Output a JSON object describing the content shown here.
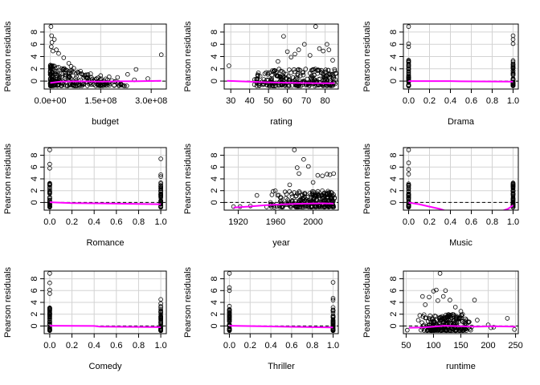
{
  "figure": {
    "ylabel": "Pearson residuals",
    "colors": {
      "points": "#000000",
      "smooth": "#ff00ff",
      "grid": "#d3d3d3",
      "reference": "#000000",
      "box": "#000000"
    }
  },
  "chart_data": [
    {
      "type": "scatter",
      "xlabel": "budget",
      "ylabel": "Pearson residuals",
      "xlim": [
        -18000000,
        345000000
      ],
      "ylim": [
        -1.3,
        9.3
      ],
      "xticks": [
        0,
        150000000,
        300000000
      ],
      "xtick_labels": [
        "0.0e+00",
        "1.5e+08",
        "3.0e+08"
      ],
      "yticks": [
        0,
        2,
        4,
        6,
        8
      ],
      "reference_line": 0,
      "grid": true,
      "points": [
        [
          2000000,
          8.9
        ],
        [
          4000000,
          7.4
        ],
        [
          5000000,
          6.3
        ],
        [
          3000000,
          5.6
        ],
        [
          12000000,
          6.8
        ],
        [
          18000000,
          5.1
        ],
        [
          25000000,
          4.5
        ],
        [
          8000000,
          4.9
        ],
        [
          40000000,
          3.8
        ],
        [
          55000000,
          2.9
        ],
        [
          62000000,
          2.4
        ],
        [
          70000000,
          2.1
        ],
        [
          90000000,
          1.6
        ],
        [
          120000000,
          1.2
        ],
        [
          150000000,
          0.9
        ],
        [
          175000000,
          0.7
        ],
        [
          200000000,
          0.6
        ],
        [
          230000000,
          1.1
        ],
        [
          250000000,
          0.2
        ],
        [
          255000000,
          1.9
        ],
        [
          290000000,
          0.4
        ],
        [
          330000000,
          4.3
        ]
      ],
      "smooth": [
        [
          0,
          -0.3
        ],
        [
          30000000,
          -0.1
        ],
        [
          80000000,
          -0.05
        ],
        [
          150000000,
          -0.1
        ],
        [
          200000000,
          -0.05
        ],
        [
          260000000,
          -0.02
        ],
        [
          330000000,
          0.05
        ]
      ]
    },
    {
      "type": "scatter",
      "xlabel": "rating",
      "ylabel": "Pearson residuals",
      "xlim": [
        26.5,
        87
      ],
      "ylim": [
        -1.3,
        9.3
      ],
      "xticks": [
        30,
        40,
        50,
        60,
        70,
        80
      ],
      "xtick_labels": [
        "30",
        "40",
        "50",
        "60",
        "70",
        "80"
      ],
      "yticks": [
        0,
        2,
        4,
        6,
        8
      ],
      "reference_line": 0,
      "grid": true,
      "points": [
        [
          29,
          2.5
        ],
        [
          44,
          0.3
        ],
        [
          48,
          1.2
        ],
        [
          52,
          1.7
        ],
        [
          55,
          3.2
        ],
        [
          58,
          7.3
        ],
        [
          60,
          4.8
        ],
        [
          62,
          3.9
        ],
        [
          64,
          4.4
        ],
        [
          66,
          5.1
        ],
        [
          69,
          6.0
        ],
        [
          72,
          4.2
        ],
        [
          75,
          8.9
        ],
        [
          77,
          5.3
        ],
        [
          79,
          4.9
        ],
        [
          81,
          6.0
        ],
        [
          82,
          5.1
        ],
        [
          84,
          3.4
        ],
        [
          85,
          1.9
        ]
      ],
      "smooth": [
        [
          28,
          0.05
        ],
        [
          35,
          -0.05
        ],
        [
          45,
          -0.15
        ],
        [
          55,
          -0.25
        ],
        [
          65,
          -0.3
        ],
        [
          75,
          -0.35
        ],
        [
          85,
          -0.35
        ]
      ]
    },
    {
      "type": "scatter",
      "xlabel": "Drama",
      "ylabel": "Pearson residuals",
      "xlim": [
        -0.05,
        1.05
      ],
      "ylim": [
        -1.3,
        9.3
      ],
      "xticks": [
        0,
        0.2,
        0.4,
        0.6,
        0.8,
        1.0
      ],
      "xtick_labels": [
        "0.0",
        "0.2",
        "0.4",
        "0.6",
        "0.8",
        "1.0"
      ],
      "yticks": [
        0,
        2,
        4,
        6,
        8
      ],
      "reference_line": 0,
      "grid": true,
      "points": [
        [
          0,
          8.9
        ],
        [
          0,
          6.1
        ],
        [
          0,
          5.6
        ],
        [
          1,
          7.4
        ],
        [
          1,
          6.8
        ],
        [
          1,
          6.1
        ]
      ],
      "smooth": [
        [
          0,
          0
        ],
        [
          0.4,
          0
        ],
        [
          0.5,
          -0.05
        ],
        [
          1,
          -0.1
        ]
      ]
    },
    {
      "type": "scatter",
      "xlabel": "Romance",
      "ylabel": "Pearson residuals",
      "xlim": [
        -0.05,
        1.05
      ],
      "ylim": [
        -1.3,
        9.3
      ],
      "xticks": [
        0,
        0.2,
        0.4,
        0.6,
        0.8,
        1.0
      ],
      "xtick_labels": [
        "0.0",
        "0.2",
        "0.4",
        "0.6",
        "0.8",
        "1.0"
      ],
      "yticks": [
        0,
        2,
        4,
        6,
        8
      ],
      "reference_line": 0,
      "grid": true,
      "points": [
        [
          0,
          8.9
        ],
        [
          0,
          6.5
        ],
        [
          0,
          5.8
        ],
        [
          1,
          7.4
        ],
        [
          1,
          4.7
        ],
        [
          1,
          4.4
        ]
      ],
      "smooth": [
        [
          0,
          0.05
        ],
        [
          0.2,
          -0.1
        ],
        [
          0.6,
          -0.2
        ],
        [
          1,
          -0.3
        ]
      ]
    },
    {
      "type": "scatter",
      "xlabel": "year",
      "ylabel": "Pearson residuals",
      "xlim": [
        1905,
        2027
      ],
      "ylim": [
        -1.3,
        9.3
      ],
      "xticks": [
        1920,
        1960,
        2000
      ],
      "xtick_labels": [
        "1920",
        "1960",
        "2000"
      ],
      "yticks": [
        0,
        2,
        4,
        6,
        8
      ],
      "reference_line": 0,
      "grid": true,
      "points": [
        [
          1915,
          -0.7
        ],
        [
          1922,
          -0.7
        ],
        [
          1933,
          -0.6
        ],
        [
          1940,
          1.2
        ],
        [
          1955,
          -0.3
        ],
        [
          1965,
          0.2
        ],
        [
          1970,
          1.8
        ],
        [
          1975,
          3.0
        ],
        [
          1980,
          8.9
        ],
        [
          1983,
          5.9
        ],
        [
          1985,
          4.9
        ],
        [
          1990,
          7.3
        ],
        [
          1995,
          6.1
        ],
        [
          2000,
          3.4
        ],
        [
          2005,
          4.6
        ],
        [
          2010,
          4.5
        ],
        [
          2015,
          4.8
        ],
        [
          2018,
          4.7
        ],
        [
          2022,
          4.9
        ]
      ],
      "smooth": [
        [
          1915,
          -0.85
        ],
        [
          1930,
          -0.7
        ],
        [
          1950,
          -0.45
        ],
        [
          1970,
          -0.3
        ],
        [
          1990,
          -0.2
        ],
        [
          2010,
          -0.15
        ],
        [
          2022,
          -0.2
        ]
      ]
    },
    {
      "type": "scatter",
      "xlabel": "Music",
      "ylabel": "Pearson residuals",
      "xlim": [
        -0.05,
        1.05
      ],
      "ylim": [
        -1.3,
        9.3
      ],
      "xticks": [
        0,
        0.2,
        0.4,
        0.6,
        0.8,
        1.0
      ],
      "xtick_labels": [
        "0.0",
        "0.2",
        "0.4",
        "0.6",
        "0.8",
        "1.0"
      ],
      "yticks": [
        0,
        2,
        4,
        6,
        8
      ],
      "reference_line": 0,
      "grid": true,
      "points": [
        [
          0,
          8.9
        ],
        [
          0,
          6.7
        ],
        [
          0,
          5.6
        ],
        [
          0,
          4.8
        ],
        [
          1,
          3.2
        ],
        [
          1,
          2.1
        ],
        [
          1,
          1.6
        ]
      ],
      "smooth": [
        [
          0,
          -0.02
        ],
        [
          0.1,
          -0.3
        ],
        [
          0.2,
          -0.7
        ],
        [
          0.3,
          -1.1
        ],
        [
          0.35,
          -1.4
        ],
        [
          0.9,
          -1.4
        ],
        [
          0.95,
          -1.1
        ],
        [
          1,
          -0.5
        ]
      ]
    },
    {
      "type": "scatter",
      "xlabel": "Comedy",
      "ylabel": "Pearson residuals",
      "xlim": [
        -0.05,
        1.05
      ],
      "ylim": [
        -1.3,
        9.3
      ],
      "xticks": [
        0,
        0.2,
        0.4,
        0.6,
        0.8,
        1.0
      ],
      "xtick_labels": [
        "0.0",
        "0.2",
        "0.4",
        "0.6",
        "0.8",
        "1.0"
      ],
      "yticks": [
        0,
        2,
        4,
        6,
        8
      ],
      "reference_line": 0,
      "grid": true,
      "points": [
        [
          0,
          8.9
        ],
        [
          0,
          7.3
        ],
        [
          0,
          6.1
        ],
        [
          0,
          5.5
        ],
        [
          1,
          4.5
        ],
        [
          1,
          3.8
        ]
      ],
      "smooth": [
        [
          0,
          0.05
        ],
        [
          0.4,
          0
        ],
        [
          0.45,
          -0.1
        ],
        [
          1,
          -0.2
        ]
      ]
    },
    {
      "type": "scatter",
      "xlabel": "Thriller",
      "ylabel": "Pearson residuals",
      "xlim": [
        -0.05,
        1.05
      ],
      "ylim": [
        -1.3,
        9.3
      ],
      "xticks": [
        0,
        0.2,
        0.4,
        0.6,
        0.8,
        1.0
      ],
      "xtick_labels": [
        "0.0",
        "0.2",
        "0.4",
        "0.6",
        "0.8",
        "1.0"
      ],
      "yticks": [
        0,
        2,
        4,
        6,
        8
      ],
      "reference_line": 0,
      "grid": true,
      "points": [
        [
          0,
          8.9
        ],
        [
          0,
          6.5
        ],
        [
          0,
          6.0
        ],
        [
          1,
          7.4
        ],
        [
          1,
          4.7
        ],
        [
          1,
          4.4
        ]
      ],
      "smooth": [
        [
          0,
          0.05
        ],
        [
          0.3,
          -0.05
        ],
        [
          0.6,
          -0.15
        ],
        [
          1,
          -0.25
        ]
      ]
    },
    {
      "type": "scatter",
      "xlabel": "runtime",
      "ylabel": "Pearson residuals",
      "xlim": [
        45,
        255
      ],
      "ylim": [
        -1.3,
        9.3
      ],
      "xticks": [
        50,
        100,
        150,
        200,
        250
      ],
      "xtick_labels": [
        "50",
        "100",
        "150",
        "200",
        "250"
      ],
      "yticks": [
        0,
        2,
        4,
        6,
        8
      ],
      "reference_line": 0,
      "grid": true,
      "points": [
        [
          52,
          -0.7
        ],
        [
          75,
          1.8
        ],
        [
          80,
          5.0
        ],
        [
          85,
          3.6
        ],
        [
          92,
          4.9
        ],
        [
          100,
          5.9
        ],
        [
          105,
          6.1
        ],
        [
          108,
          4.3
        ],
        [
          112,
          8.9
        ],
        [
          118,
          5.0
        ],
        [
          122,
          6.0
        ],
        [
          130,
          4.4
        ],
        [
          140,
          3.2
        ],
        [
          150,
          2.5
        ],
        [
          160,
          1.0
        ],
        [
          175,
          4.4
        ],
        [
          180,
          1.0
        ],
        [
          200,
          0.2
        ],
        [
          205,
          -0.3
        ],
        [
          210,
          -0.2
        ],
        [
          235,
          1.3
        ],
        [
          248,
          -0.6
        ]
      ],
      "smooth": [
        [
          55,
          -0.3
        ],
        [
          80,
          -0.25
        ],
        [
          100,
          -0.1
        ],
        [
          120,
          0.05
        ],
        [
          150,
          -0.05
        ],
        [
          180,
          -0.1
        ],
        [
          210,
          -0.05
        ],
        [
          250,
          -0.1
        ]
      ]
    }
  ]
}
